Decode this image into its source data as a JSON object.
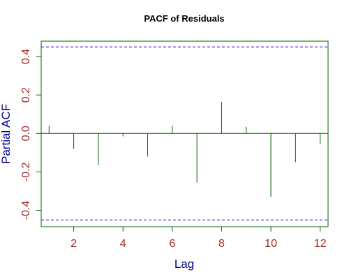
{
  "chart_data": {
    "type": "bar",
    "title": "PACF of Residuals",
    "xlabel": "Lag",
    "ylabel": "Partial ACF",
    "x": [
      1,
      2,
      3,
      4,
      5,
      6,
      7,
      8,
      9,
      10,
      11,
      12
    ],
    "values": [
      0.04,
      -0.08,
      -0.165,
      -0.015,
      -0.12,
      0.04,
      -0.255,
      0.165,
      0.035,
      -0.33,
      -0.15,
      -0.055
    ],
    "confidence_bounds": [
      0.45,
      -0.45
    ],
    "xlim": [
      0.68,
      12.32
    ],
    "ylim": [
      -0.485,
      0.48
    ],
    "xticks": [
      2,
      4,
      6,
      8,
      10,
      12
    ],
    "yticks": [
      -0.4,
      -0.2,
      0.0,
      0.2,
      0.4
    ],
    "xtick_labels": [
      "2",
      "4",
      "6",
      "8",
      "10",
      "12"
    ],
    "ytick_labels": [
      "-0.4",
      "-0.2",
      "0.0",
      "0.2",
      "0.4"
    ],
    "grid": false,
    "colors": {
      "bars": "#006400",
      "frame": "#006400",
      "zero_line": "#006400",
      "confidence": "#0000cc",
      "tick_labels": "#a52a2a",
      "axis_labels": "#00008b",
      "title": "#000000"
    }
  }
}
